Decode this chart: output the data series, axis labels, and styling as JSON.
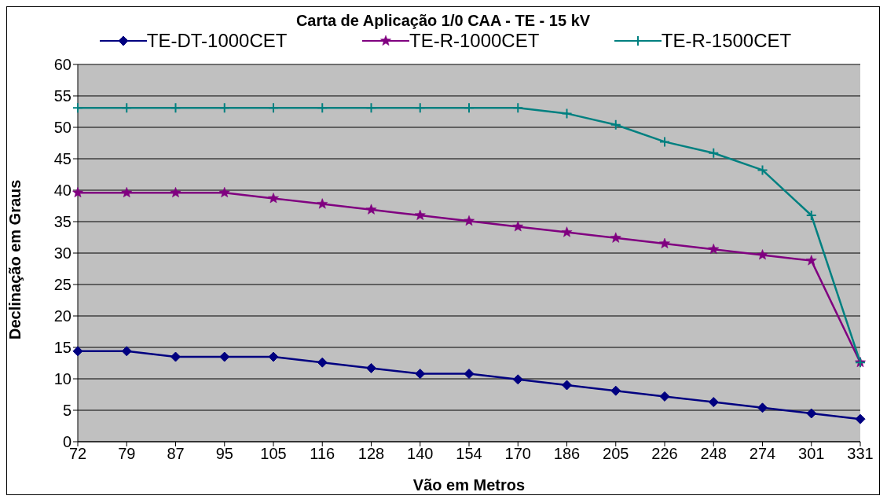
{
  "chart_data": {
    "type": "line",
    "title": "Carta de Aplicação  1/0 CAA - TE - 15 kV",
    "xlabel": "Vão em Metros",
    "ylabel": "Declinação em Graus",
    "categories": [
      "72",
      "79",
      "87",
      "95",
      "105",
      "116",
      "128",
      "140",
      "154",
      "170",
      "186",
      "205",
      "226",
      "248",
      "274",
      "301",
      "331"
    ],
    "series": [
      {
        "name": "TE-DT-1000CET",
        "color": "#000080",
        "marker": "diamond",
        "values": [
          14.4,
          14.4,
          13.5,
          13.5,
          13.5,
          12.6,
          11.7,
          10.8,
          10.8,
          9.9,
          9.0,
          8.1,
          7.2,
          6.3,
          5.4,
          4.5,
          3.6
        ]
      },
      {
        "name": "TE-R-1000CET",
        "color": "#800080",
        "marker": "star",
        "values": [
          39.6,
          39.6,
          39.6,
          39.6,
          38.7,
          37.8,
          36.9,
          36.0,
          35.1,
          34.2,
          33.3,
          32.4,
          31.5,
          30.6,
          29.7,
          28.8,
          12.6
        ]
      },
      {
        "name": "TE-R-1500CET",
        "color": "#008080",
        "marker": "cross",
        "values": [
          53.1,
          53.1,
          53.1,
          53.1,
          53.1,
          53.1,
          53.1,
          53.1,
          53.1,
          53.1,
          52.2,
          50.4,
          47.7,
          45.9,
          43.2,
          36.0,
          12.6
        ]
      }
    ],
    "ylim": [
      0,
      60
    ],
    "yticks": [
      0,
      5,
      10,
      15,
      20,
      25,
      30,
      35,
      40,
      45,
      50,
      55,
      60
    ],
    "grid": "y",
    "legend": "top",
    "line_style": "solid"
  }
}
